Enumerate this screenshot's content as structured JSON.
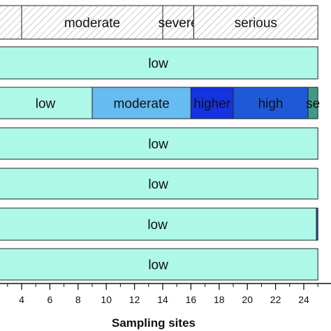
{
  "chart_data": {
    "type": "bar",
    "orientation": "horizontal-segmented",
    "xlabel": "Sampling sites",
    "x_ticks": [
      4,
      6,
      8,
      10,
      12,
      14,
      16,
      18,
      20,
      22,
      24
    ],
    "xlim": [
      1.8,
      25
    ],
    "rows": [
      {
        "segments": [
          {
            "label": "",
            "start": 1.8,
            "end": 4.0,
            "color": "#ffffff",
            "pattern": "hatch"
          },
          {
            "label": "moderate",
            "start": 4.0,
            "end": 14.0,
            "color": "#ffffff",
            "pattern": "hatch"
          },
          {
            "label": "severe",
            "start": 14.0,
            "end": 16.2,
            "color": "#ffffff",
            "pattern": "hatch"
          },
          {
            "label": "serious",
            "start": 16.2,
            "end": 25.0,
            "color": "#ffffff",
            "pattern": "hatch"
          }
        ]
      },
      {
        "segments": [
          {
            "label": "low",
            "start": 1.8,
            "end": 25.0,
            "color": "#aef8e8"
          }
        ]
      },
      {
        "segments": [
          {
            "label": "low",
            "start": 1.8,
            "end": 9.0,
            "color": "#aef8e8"
          },
          {
            "label": "moderate",
            "start": 9.0,
            "end": 16.0,
            "color": "#66bbf0"
          },
          {
            "label": "higher",
            "start": 16.0,
            "end": 19.0,
            "color": "#1533e0"
          },
          {
            "label": "high",
            "start": 19.0,
            "end": 24.3,
            "color": "#1e5ad8"
          },
          {
            "label": "se",
            "start": 24.3,
            "end": 25.0,
            "color": "#3f9a88"
          }
        ]
      },
      {
        "segments": [
          {
            "label": "low",
            "start": 1.8,
            "end": 25.0,
            "color": "#aef8e8"
          }
        ]
      },
      {
        "segments": [
          {
            "label": "low",
            "start": 1.8,
            "end": 25.0,
            "color": "#aef8e8"
          }
        ]
      },
      {
        "segments": [
          {
            "label": "low",
            "start": 1.8,
            "end": 24.9,
            "color": "#aef8e8"
          },
          {
            "label": "",
            "start": 24.9,
            "end": 25.0,
            "color": "#1e5ad8"
          }
        ]
      },
      {
        "segments": [
          {
            "label": "low",
            "start": 1.8,
            "end": 25.0,
            "color": "#aef8e8"
          }
        ]
      }
    ]
  }
}
